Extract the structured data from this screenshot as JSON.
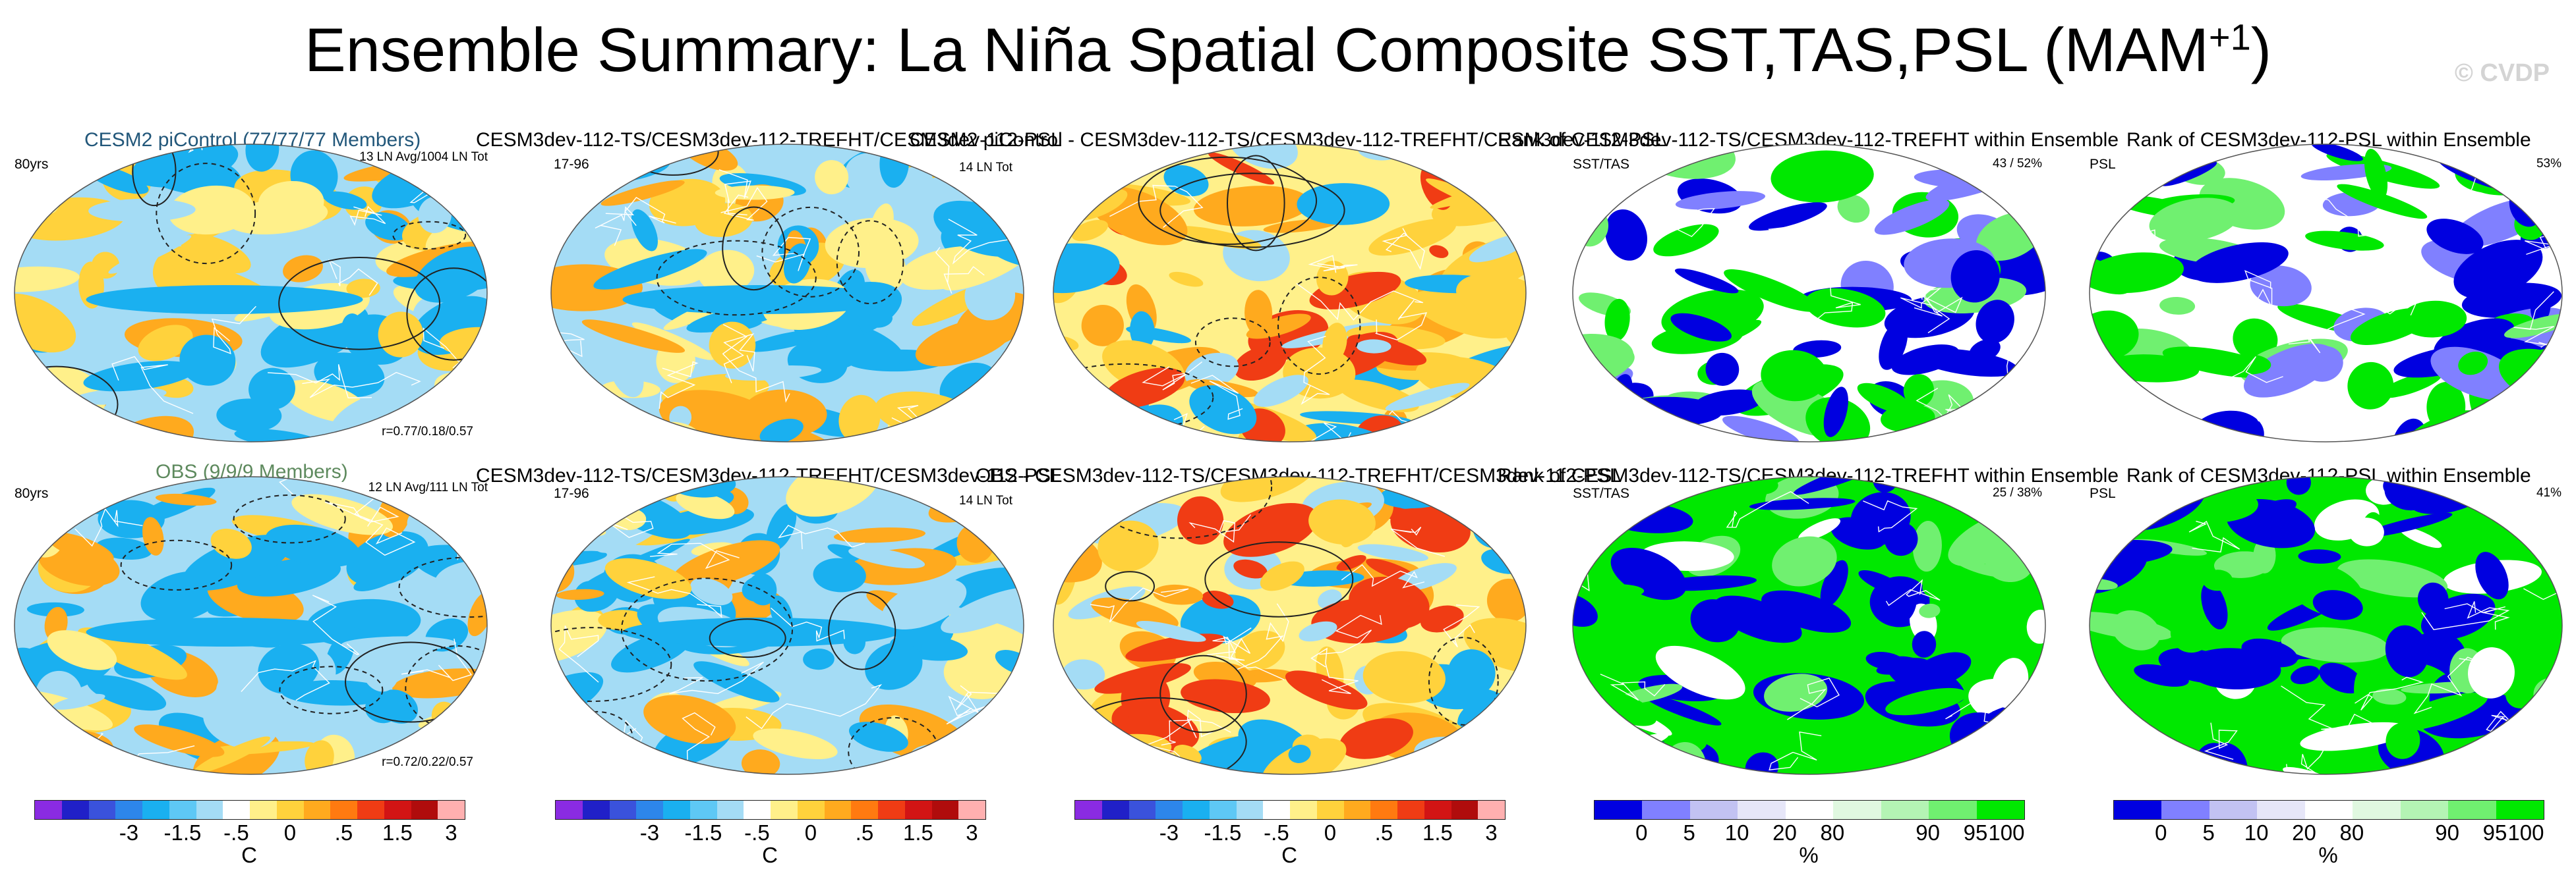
{
  "title": {
    "main": "Ensemble Summary: La Niña Spatial Composite SST,TAS,PSL (MAM",
    "superscript": "+1",
    "close": ")"
  },
  "watermark": "© CVDP",
  "labels": {
    "r1_centered": "CESM2 piControl (77/77/77 Members)",
    "r1_c1_tl": "80yrs",
    "r1_c1_tr": "13 LN Avg/1004 LN Tot",
    "r1_c1_br": "r=0.77/0.18/0.57",
    "r1_c2_title": "CESM3dev-112-TS/CESM3dev-112-TREFHT/CESM3dev-112-PSL",
    "r1_c2_tl": "17-96",
    "r1_c2_tr": "14 LN Tot",
    "r1_c3_title": "CESM2 piControl - CESM3dev-112-TS/CESM3dev-112-TREFHT/CESM3dev-112-PSL",
    "r1_c4_title": "Rank of CESM3dev-112-TS/CESM3dev-112-TREFHT within Ensemble",
    "r1_c4_tl": "SST/TAS",
    "r1_c4_tr": "43 /  52%",
    "r1_c5_title": "Rank of CESM3dev-112-PSL within Ensemble",
    "r1_c5_tl": "PSL",
    "r1_c5_tr": "53%",
    "r2_centered": "OBS (9/9/9 Members)",
    "r2_c1_tl": "80yrs",
    "r2_c1_tr": "12 LN Avg/111 LN Tot",
    "r2_c1_br": "r=0.72/0.22/0.57",
    "r2_c2_title": "CESM3dev-112-TS/CESM3dev-112-TREFHT/CESM3dev-112-PSL",
    "r2_c2_tl": "17-96",
    "r2_c2_tr": "14 LN Tot",
    "r2_c3_title": "OBS - CESM3dev-112-TS/CESM3dev-112-TREFHT/CESM3dev-112-PSL",
    "r2_c4_title": "Rank of CESM3dev-112-TS/CESM3dev-112-TREFHT within Ensemble",
    "r2_c4_tl": "SST/TAS",
    "r2_c4_tr": "25 /  38%",
    "r2_c5_title": "Rank of CESM3dev-112-PSL within Ensemble",
    "r2_c5_tl": "PSL",
    "r2_c5_tr": "41%"
  },
  "chart_data": {
    "type": "heatmap",
    "title": "Ensemble Summary: La Niña Spatial Composite SST,TAS,PSL (MAM+1)",
    "anomaly_colorbar": {
      "unit": "C",
      "tick_labels": [
        "-3",
        "-1.5",
        "-.5",
        "0",
        ".5",
        "1.5",
        "3"
      ],
      "colors": [
        "#8a2be2",
        "#2020c8",
        "#3a52dc",
        "#2d86ea",
        "#1ab0f0",
        "#5ec8f5",
        "#a4dcf5",
        "#ffffff",
        "#fff08a",
        "#ffd23c",
        "#ffaa1e",
        "#ff7a10",
        "#f03c14",
        "#d21414",
        "#b00c0c",
        "#ffb0b0"
      ]
    },
    "rank_colorbar": {
      "unit": "%",
      "tick_labels": [
        "0",
        "5",
        "10",
        "20",
        "80",
        "90",
        "95",
        "100"
      ],
      "colors": [
        "#0000e0",
        "#8080ff",
        "#c2c2f2",
        "#e6e6f8",
        "#ffffff",
        "#e0f8e0",
        "#b4f4b4",
        "#70f070",
        "#00e800"
      ]
    },
    "anomaly_palette": {
      "ocean_base": "#a4dcf5",
      "cold": "#1ab0f0",
      "warm": "#fff08a",
      "warmer": "#ffd23c",
      "hot": "#ffaa1e",
      "hottest": "#f03c14"
    },
    "rank_palette": {
      "low": "#0000e0",
      "lowmid": "#8080ff",
      "high": "#00e800",
      "highmid": "#70f070"
    }
  }
}
